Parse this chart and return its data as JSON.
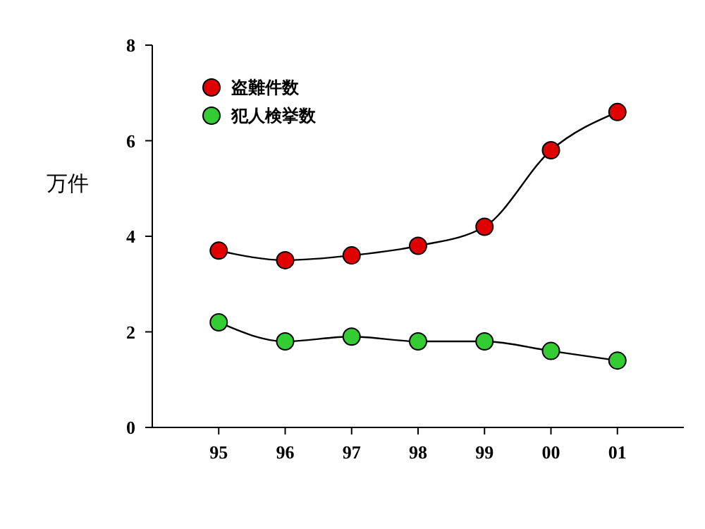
{
  "chart_data": {
    "type": "line",
    "ylabel": "万件",
    "categories": [
      "95",
      "96",
      "97",
      "98",
      "99",
      "00",
      "01"
    ],
    "ylim": [
      0,
      8
    ],
    "yticks": [
      0,
      2,
      4,
      6,
      8
    ],
    "legend": "top left",
    "marker": "circle",
    "line_style": "solid",
    "series": [
      {
        "name": "盗難件数",
        "color": "#e00000",
        "values": [
          3.7,
          3.5,
          3.6,
          3.8,
          4.2,
          5.8,
          6.6
        ]
      },
      {
        "name": "犯人検挙数",
        "color": "#33cc33",
        "values": [
          2.2,
          1.8,
          1.9,
          1.8,
          1.8,
          1.6,
          1.4
        ]
      }
    ]
  }
}
